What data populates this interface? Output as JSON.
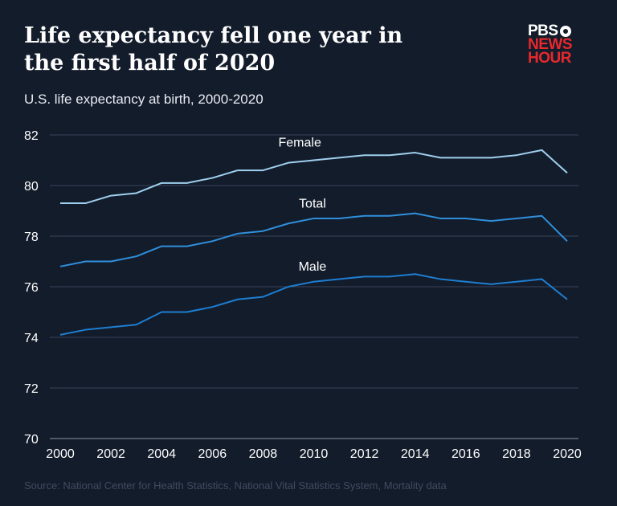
{
  "title": "Life expectancy fell one year in the first half of 2020",
  "subtitle": "U.S. life expectancy at birth, 2000-2020",
  "logo": {
    "line1": "PBS",
    "line2": "NEWS",
    "line3": "HOUR"
  },
  "source": "Source: National Center for Health Statistics, National Vital Statistics System, Mortality data",
  "colors": {
    "background": "#131c2b",
    "female": "#9fd0ee",
    "total": "#2f8fdb",
    "male": "#1e7ed1",
    "grid": "#3a4558"
  },
  "chart_data": {
    "type": "line",
    "title": "Life expectancy fell one year in the first half of 2020",
    "subtitle": "U.S. life expectancy at birth, 2000-2020",
    "x": [
      2000,
      2001,
      2002,
      2003,
      2004,
      2005,
      2006,
      2007,
      2008,
      2009,
      2010,
      2011,
      2012,
      2013,
      2014,
      2015,
      2016,
      2017,
      2018,
      2019,
      2020
    ],
    "xticks": [
      "2000",
      "2002",
      "2004",
      "2006",
      "2008",
      "2010",
      "2012",
      "2014",
      "2016",
      "2018",
      "2020"
    ],
    "yticks": [
      "70",
      "72",
      "74",
      "76",
      "78",
      "80",
      "82"
    ],
    "xlim": [
      2000,
      2020
    ],
    "ylim": [
      70,
      82
    ],
    "grid": true,
    "series": [
      {
        "name": "Female",
        "values": [
          79.3,
          79.3,
          79.6,
          79.7,
          80.1,
          80.1,
          80.3,
          80.6,
          80.6,
          80.9,
          81.0,
          81.1,
          81.2,
          81.2,
          81.3,
          81.1,
          81.1,
          81.1,
          81.2,
          81.4,
          80.5
        ]
      },
      {
        "name": "Total",
        "values": [
          76.8,
          77.0,
          77.0,
          77.2,
          77.6,
          77.6,
          77.8,
          78.1,
          78.2,
          78.5,
          78.7,
          78.7,
          78.8,
          78.8,
          78.9,
          78.7,
          78.7,
          78.6,
          78.7,
          78.8,
          77.8
        ]
      },
      {
        "name": "Male",
        "values": [
          74.1,
          74.3,
          74.4,
          74.5,
          75.0,
          75.0,
          75.2,
          75.5,
          75.6,
          76.0,
          76.2,
          76.3,
          76.4,
          76.4,
          76.5,
          76.3,
          76.2,
          76.1,
          76.2,
          76.3,
          75.5
        ]
      }
    ]
  }
}
